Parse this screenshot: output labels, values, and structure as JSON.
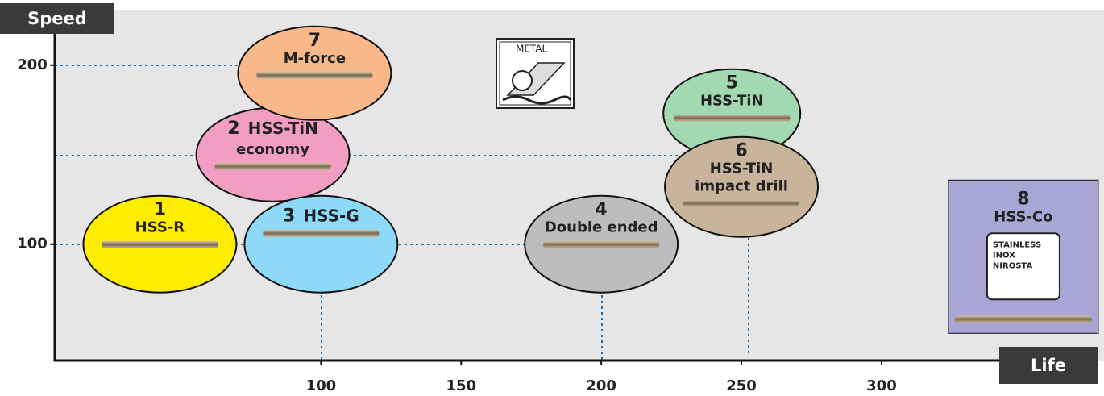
{
  "chart_data": {
    "type": "scatter",
    "y_label": "Speed",
    "x_label": "Life",
    "xlim": [
      5,
      342
    ],
    "ylim": [
      35,
      231
    ],
    "xticks": [
      100,
      150,
      200,
      250,
      300
    ],
    "yticks": [
      100,
      200
    ],
    "icon_text": "METAL",
    "points": [
      {
        "number": "1",
        "lines": [
          "HSS-R"
        ],
        "color": "#ffed00",
        "x": 42.5,
        "y": 100
      },
      {
        "number": "2",
        "lines": [
          "HSS-TiN",
          "economy"
        ],
        "color": "#f19ec2",
        "x": 82.8,
        "y": 150
      },
      {
        "number": "3",
        "lines": [
          "HSS-G"
        ],
        "color": "#8ed8f8",
        "x": 100,
        "y": 100
      },
      {
        "number": "4",
        "lines": [
          "Double ended"
        ],
        "color": "#bdbdbd",
        "x": 200,
        "y": 100
      },
      {
        "number": "5",
        "lines": [
          "HSS-TiN"
        ],
        "color": "#a3d9b1",
        "x": 246.6,
        "y": 173
      },
      {
        "number": "6",
        "lines": [
          "HSS-TiN",
          "impact drill"
        ],
        "color": "#c8b49a",
        "x": 250,
        "y": 132
      },
      {
        "number": "7",
        "lines": [
          "M-force"
        ],
        "color": "#f9b88a",
        "x": 97.7,
        "y": 195.5
      },
      {
        "number": "8",
        "lines": [
          "HSS-Co"
        ],
        "color": "#a9a6d6",
        "x": 350.6,
        "y": 93,
        "badge": [
          "STAINLESS",
          "INOX",
          "NIROSTA"
        ]
      }
    ]
  }
}
